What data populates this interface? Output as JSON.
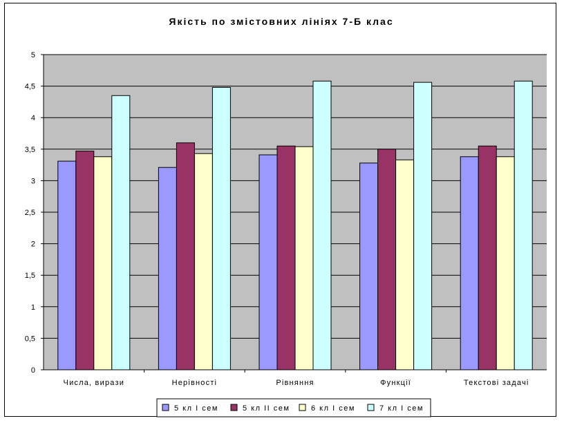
{
  "chart_data": {
    "type": "bar",
    "title": "Якість по змістовних лініях 7-Б клас",
    "categories": [
      "Числа, вирази",
      "Нерівності",
      "Рівняння",
      "Функції",
      "Текстові задачі"
    ],
    "y_ticks": [
      "0",
      "0,5",
      "1",
      "1,5",
      "2",
      "2,5",
      "3",
      "3,5",
      "4",
      "4,5",
      "5"
    ],
    "ylim": [
      0,
      5
    ],
    "grid": true,
    "legend_position": "bottom",
    "plot_background": "#c0c0c0",
    "series": [
      {
        "name": "5 кл І сем",
        "color": "#9999ff",
        "values": [
          3.31,
          3.21,
          3.41,
          3.28,
          3.38
        ]
      },
      {
        "name": "5 кл ІІ сем",
        "color": "#993366",
        "values": [
          3.47,
          3.6,
          3.55,
          3.5,
          3.55
        ]
      },
      {
        "name": "6 кл І сем",
        "color": "#ffffcc",
        "values": [
          3.38,
          3.43,
          3.54,
          3.33,
          3.38
        ]
      },
      {
        "name": "7 кл І сем",
        "color": "#ccffff",
        "values": [
          4.35,
          4.48,
          4.58,
          4.56,
          4.58
        ]
      }
    ]
  }
}
